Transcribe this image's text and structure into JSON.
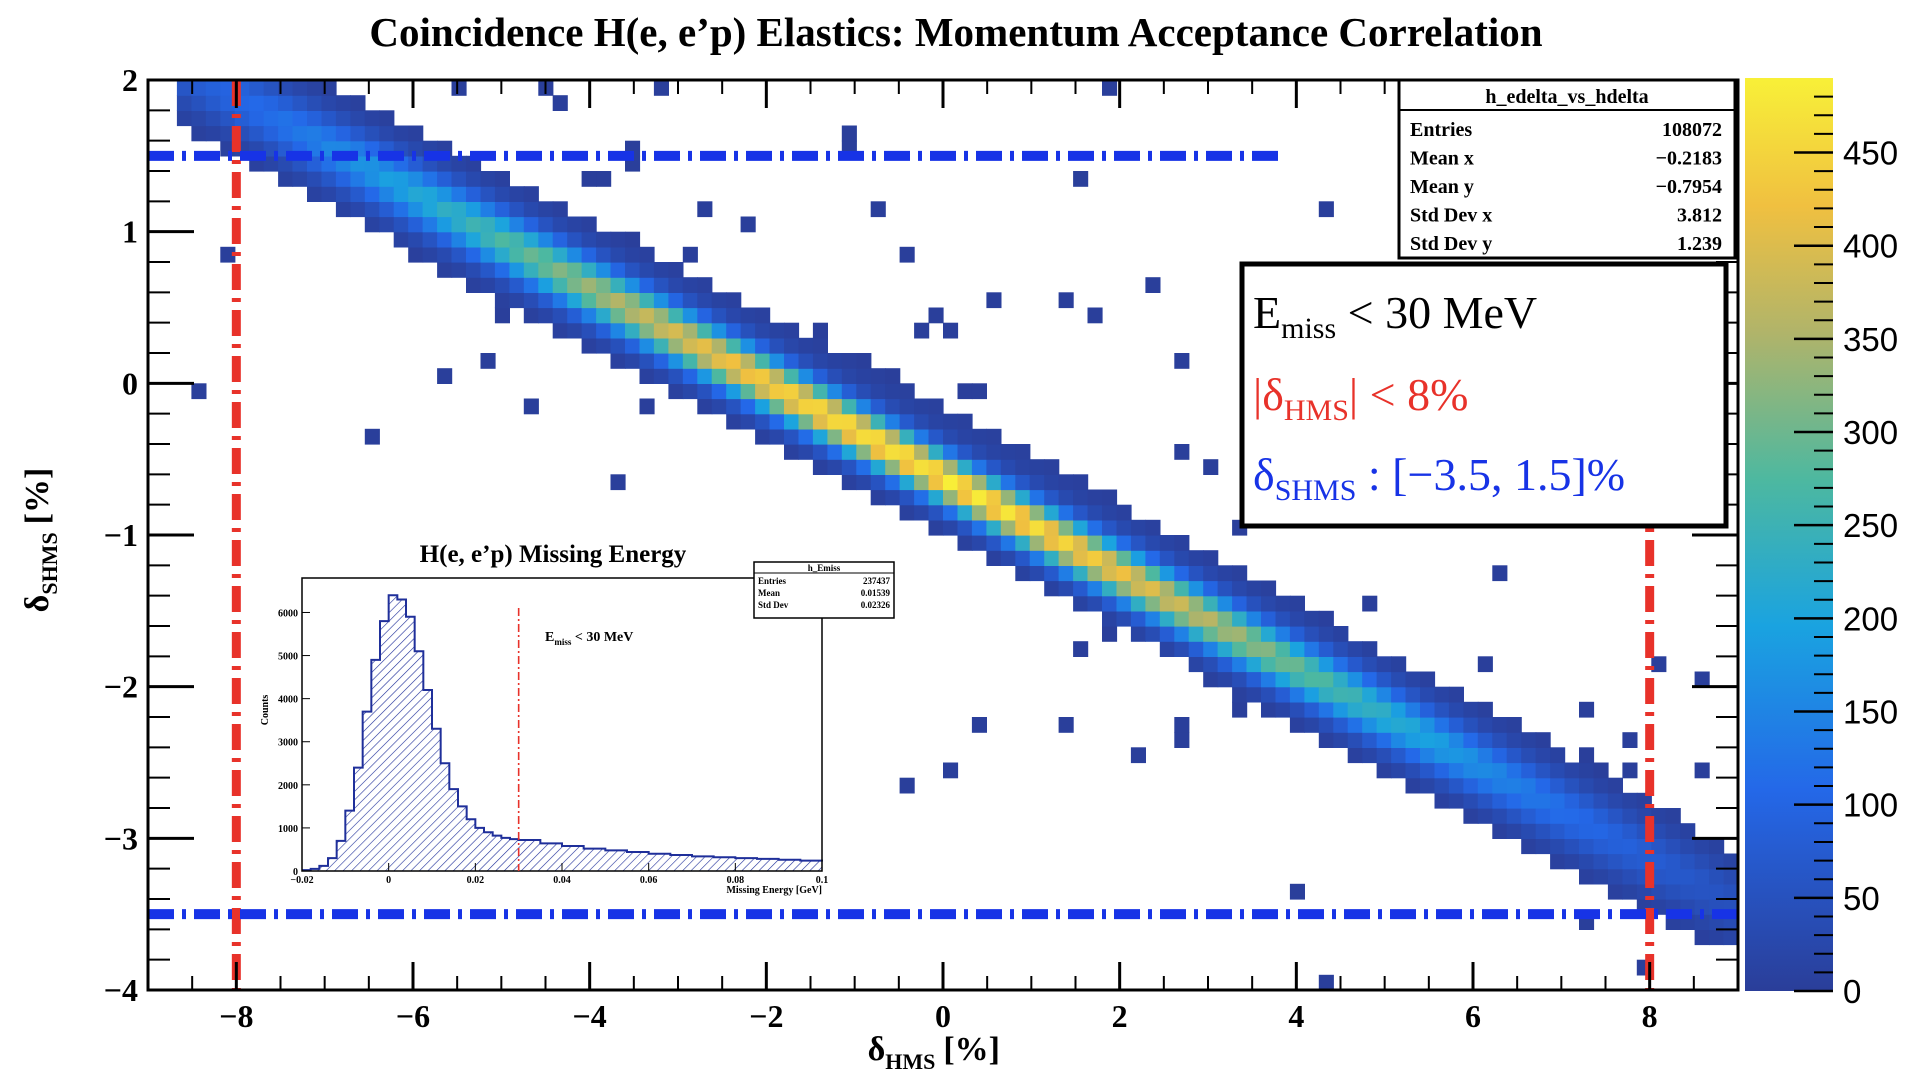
{
  "chart_data": [
    {
      "type": "heatmap",
      "title": "Coincidence H(e, e’p) Elastics: Momentum Acceptance Correlation",
      "histogram_name": "h_edelta_vs_hdelta",
      "xlabel": {
        "symbol": "δ",
        "sub": "HMS",
        "unit": "[%]"
      },
      "ylabel": {
        "symbol": "δ",
        "sub": "SHMS",
        "unit": "[%]"
      },
      "xlim": [
        -9,
        9
      ],
      "ylim": [
        -4,
        2
      ],
      "x_ticks": [
        -8,
        -6,
        -4,
        -2,
        0,
        2,
        4,
        6,
        8
      ],
      "x_tick_labels": [
        "−8",
        "−6",
        "−4",
        "−2",
        "0",
        "2",
        "4",
        "6",
        "8"
      ],
      "y_ticks": [
        -4,
        -3,
        -2,
        -1,
        0,
        1,
        2
      ],
      "y_tick_labels": [
        "−4",
        "−3",
        "−2",
        "−1",
        "0",
        "1",
        "2"
      ],
      "correlation": {
        "slope": -0.3125,
        "intercept": -0.625,
        "core_width_y": 0.12,
        "x_range": [
          -8.7,
          9
        ]
      },
      "zlim": [
        0,
        490
      ],
      "z_ticks": [
        0,
        50,
        100,
        150,
        200,
        250,
        300,
        350,
        400,
        450
      ],
      "colorbar_labels": [
        "0",
        "50",
        "100",
        "150",
        "200",
        "250",
        "300",
        "350",
        "400",
        "450"
      ],
      "stats": [
        {
          "label": "Entries",
          "value": "108072"
        },
        {
          "label": "Mean x",
          "value": "−0.2183"
        },
        {
          "label": "Mean y",
          "value": "−0.7954"
        },
        {
          "label": "Std Dev x",
          "value": "3.812"
        },
        {
          "label": "Std Dev y",
          "value": "1.239"
        }
      ],
      "cut_lines": {
        "hms_x": [
          -8,
          8
        ],
        "shms_y": [
          1.5,
          -3.5
        ],
        "hms_color": "#e8322a",
        "shms_color": "#1733e6"
      },
      "cuts_legend": {
        "emiss": {
          "base": "E",
          "sub": "miss",
          "rest": " < 30 MeV"
        },
        "hms": {
          "pre": "|δ",
          "sub": "HMS",
          "rest": "| < 8%"
        },
        "shms": {
          "pre": "δ",
          "sub": "SHMS",
          "rest": " : [−3.5, 1.5]%"
        }
      }
    },
    {
      "type": "line",
      "title": "H(e, e’p) Missing Energy",
      "histogram_name": "h_Emiss",
      "xlabel": "Missing Energy [GeV]",
      "ylabel": "Counts",
      "xlim": [
        -0.02,
        0.1
      ],
      "ylim": [
        0,
        6800
      ],
      "x_ticks": [
        -0.02,
        0,
        0.02,
        0.04,
        0.06,
        0.08,
        0.1
      ],
      "x_tick_labels": [
        "−0.02",
        "0",
        "0.02",
        "0.04",
        "0.06",
        "0.08",
        "0.1"
      ],
      "y_ticks": [
        0,
        1000,
        2000,
        3000,
        4000,
        5000,
        6000
      ],
      "y_tick_labels": [
        "0",
        "1000",
        "2000",
        "3000",
        "4000",
        "5000",
        "6000"
      ],
      "cut_x": 0.03,
      "cut_label": {
        "base": "E",
        "sub": "miss",
        "rest": " < 30 MeV"
      },
      "stats": [
        {
          "label": "Entries",
          "value": "237437"
        },
        {
          "label": "Mean",
          "value": "0.01539"
        },
        {
          "label": "Std Dev",
          "value": "0.02326"
        }
      ],
      "x": [
        -0.02,
        -0.018,
        -0.016,
        -0.014,
        -0.012,
        -0.01,
        -0.008,
        -0.006,
        -0.004,
        -0.002,
        0,
        0.002,
        0.004,
        0.006,
        0.008,
        0.01,
        0.012,
        0.014,
        0.016,
        0.018,
        0.02,
        0.022,
        0.024,
        0.026,
        0.028,
        0.03,
        0.035,
        0.04,
        0.045,
        0.05,
        0.055,
        0.06,
        0.065,
        0.07,
        0.075,
        0.08,
        0.085,
        0.09,
        0.095,
        0.1
      ],
      "values": [
        20,
        50,
        120,
        300,
        700,
        1400,
        2400,
        3700,
        4900,
        5800,
        6400,
        6300,
        5900,
        5100,
        4200,
        3300,
        2500,
        1900,
        1500,
        1200,
        1000,
        900,
        820,
        770,
        740,
        720,
        640,
        580,
        520,
        480,
        440,
        400,
        370,
        340,
        320,
        300,
        280,
        260,
        240,
        220
      ]
    }
  ]
}
